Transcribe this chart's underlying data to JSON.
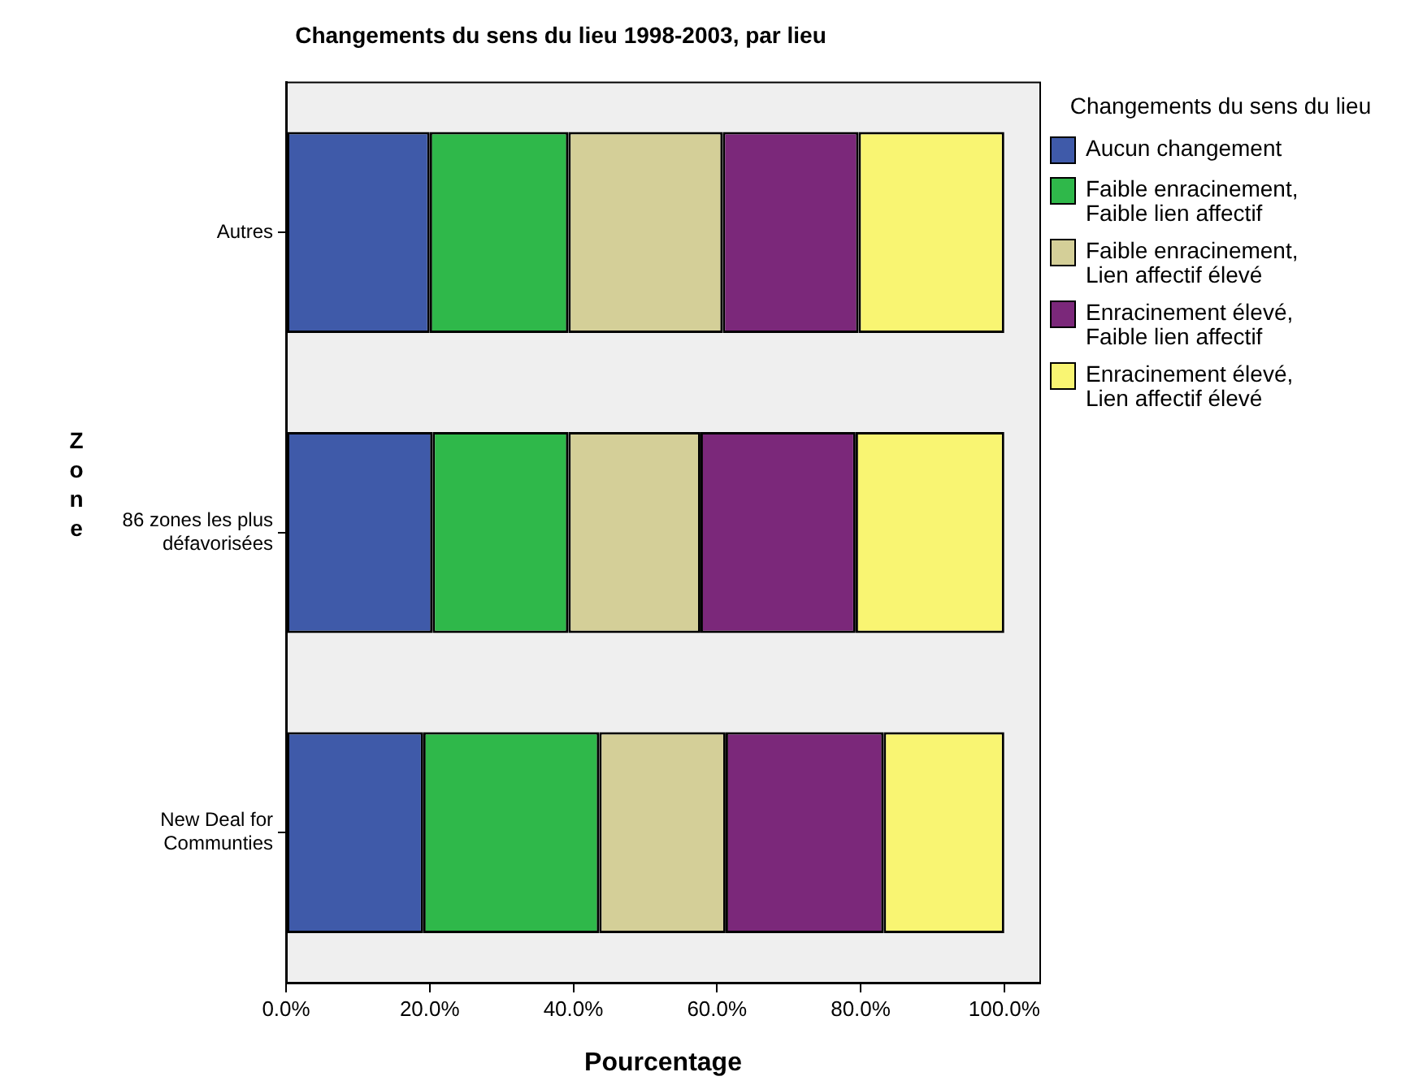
{
  "chart_data": {
    "type": "bar",
    "title": "Changements du sens du lieu 1998-2003, par lieu",
    "xlabel": "Pourcentage",
    "ylabel": "Zone",
    "legend_title": "Changements du sens du lieu",
    "categories": [
      "Autres",
      "86 zones les plus défavorisées",
      "New Deal for Communties"
    ],
    "orientation": "horizontal",
    "stacked": true,
    "legend": "right",
    "xlim": [
      0,
      105
    ],
    "xticks": [
      {
        "value": 0,
        "label": "0.0%"
      },
      {
        "value": 20,
        "label": "20.0%"
      },
      {
        "value": 40,
        "label": "40.0%"
      },
      {
        "value": 60,
        "label": "60.0%"
      },
      {
        "value": 80,
        "label": "80.0%"
      },
      {
        "value": 100,
        "label": "100.0%"
      }
    ],
    "series": [
      {
        "name": "Aucun changement",
        "color": "#3f5aa9",
        "values": [
          20.0,
          20.4,
          19.1
        ]
      },
      {
        "name": "Faible enracinement, Faible lien affectif",
        "color": "#2fb84a",
        "values": [
          19.3,
          18.9,
          24.5
        ]
      },
      {
        "name": "Faible enracinement, Lien affectif élevé",
        "color": "#d4cf98",
        "values": [
          21.5,
          18.4,
          17.6
        ]
      },
      {
        "name": "Enracinement élevé, Faible lien affectif",
        "color": "#7b287a",
        "values": [
          18.9,
          21.6,
          22.0
        ]
      },
      {
        "name": "Enracinement élevé, Lien affectif élevé",
        "color": "#f9f572",
        "values": [
          20.3,
          20.7,
          16.8
        ]
      }
    ]
  }
}
